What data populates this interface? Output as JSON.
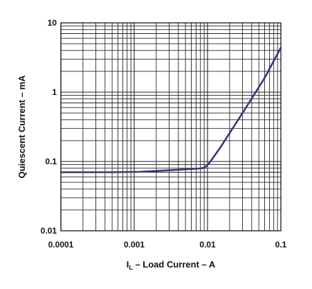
{
  "chart_data": {
    "type": "line",
    "xlabel_main": "I",
    "xlabel_sub": "L",
    "xlabel_rest": " – Load Current – A",
    "ylabel": "Quiescent Current – mA",
    "x_scale": "log",
    "y_scale": "log",
    "xlim": [
      0.0001,
      0.1
    ],
    "ylim": [
      0.01,
      10
    ],
    "x_ticks": [
      {
        "value": 0.0001,
        "label": "0.0001"
      },
      {
        "value": 0.001,
        "label": "0.001"
      },
      {
        "value": 0.01,
        "label": "0.01"
      },
      {
        "value": 0.1,
        "label": "0.1"
      }
    ],
    "y_ticks": [
      {
        "value": 0.01,
        "label": "0.01"
      },
      {
        "value": 0.1,
        "label": "0.1"
      },
      {
        "value": 1,
        "label": "1"
      },
      {
        "value": 10,
        "label": "10"
      }
    ],
    "grid": true,
    "line_color": "#3a3478",
    "series": [
      {
        "x": [
          0.0001,
          0.0005,
          0.0012,
          0.002,
          0.004,
          0.0075,
          0.009,
          0.0105,
          0.015,
          0.03,
          0.06,
          0.1
        ],
        "y": [
          0.07,
          0.07,
          0.071,
          0.073,
          0.076,
          0.079,
          0.081,
          0.094,
          0.16,
          0.5,
          1.6,
          4.4
        ]
      }
    ]
  }
}
